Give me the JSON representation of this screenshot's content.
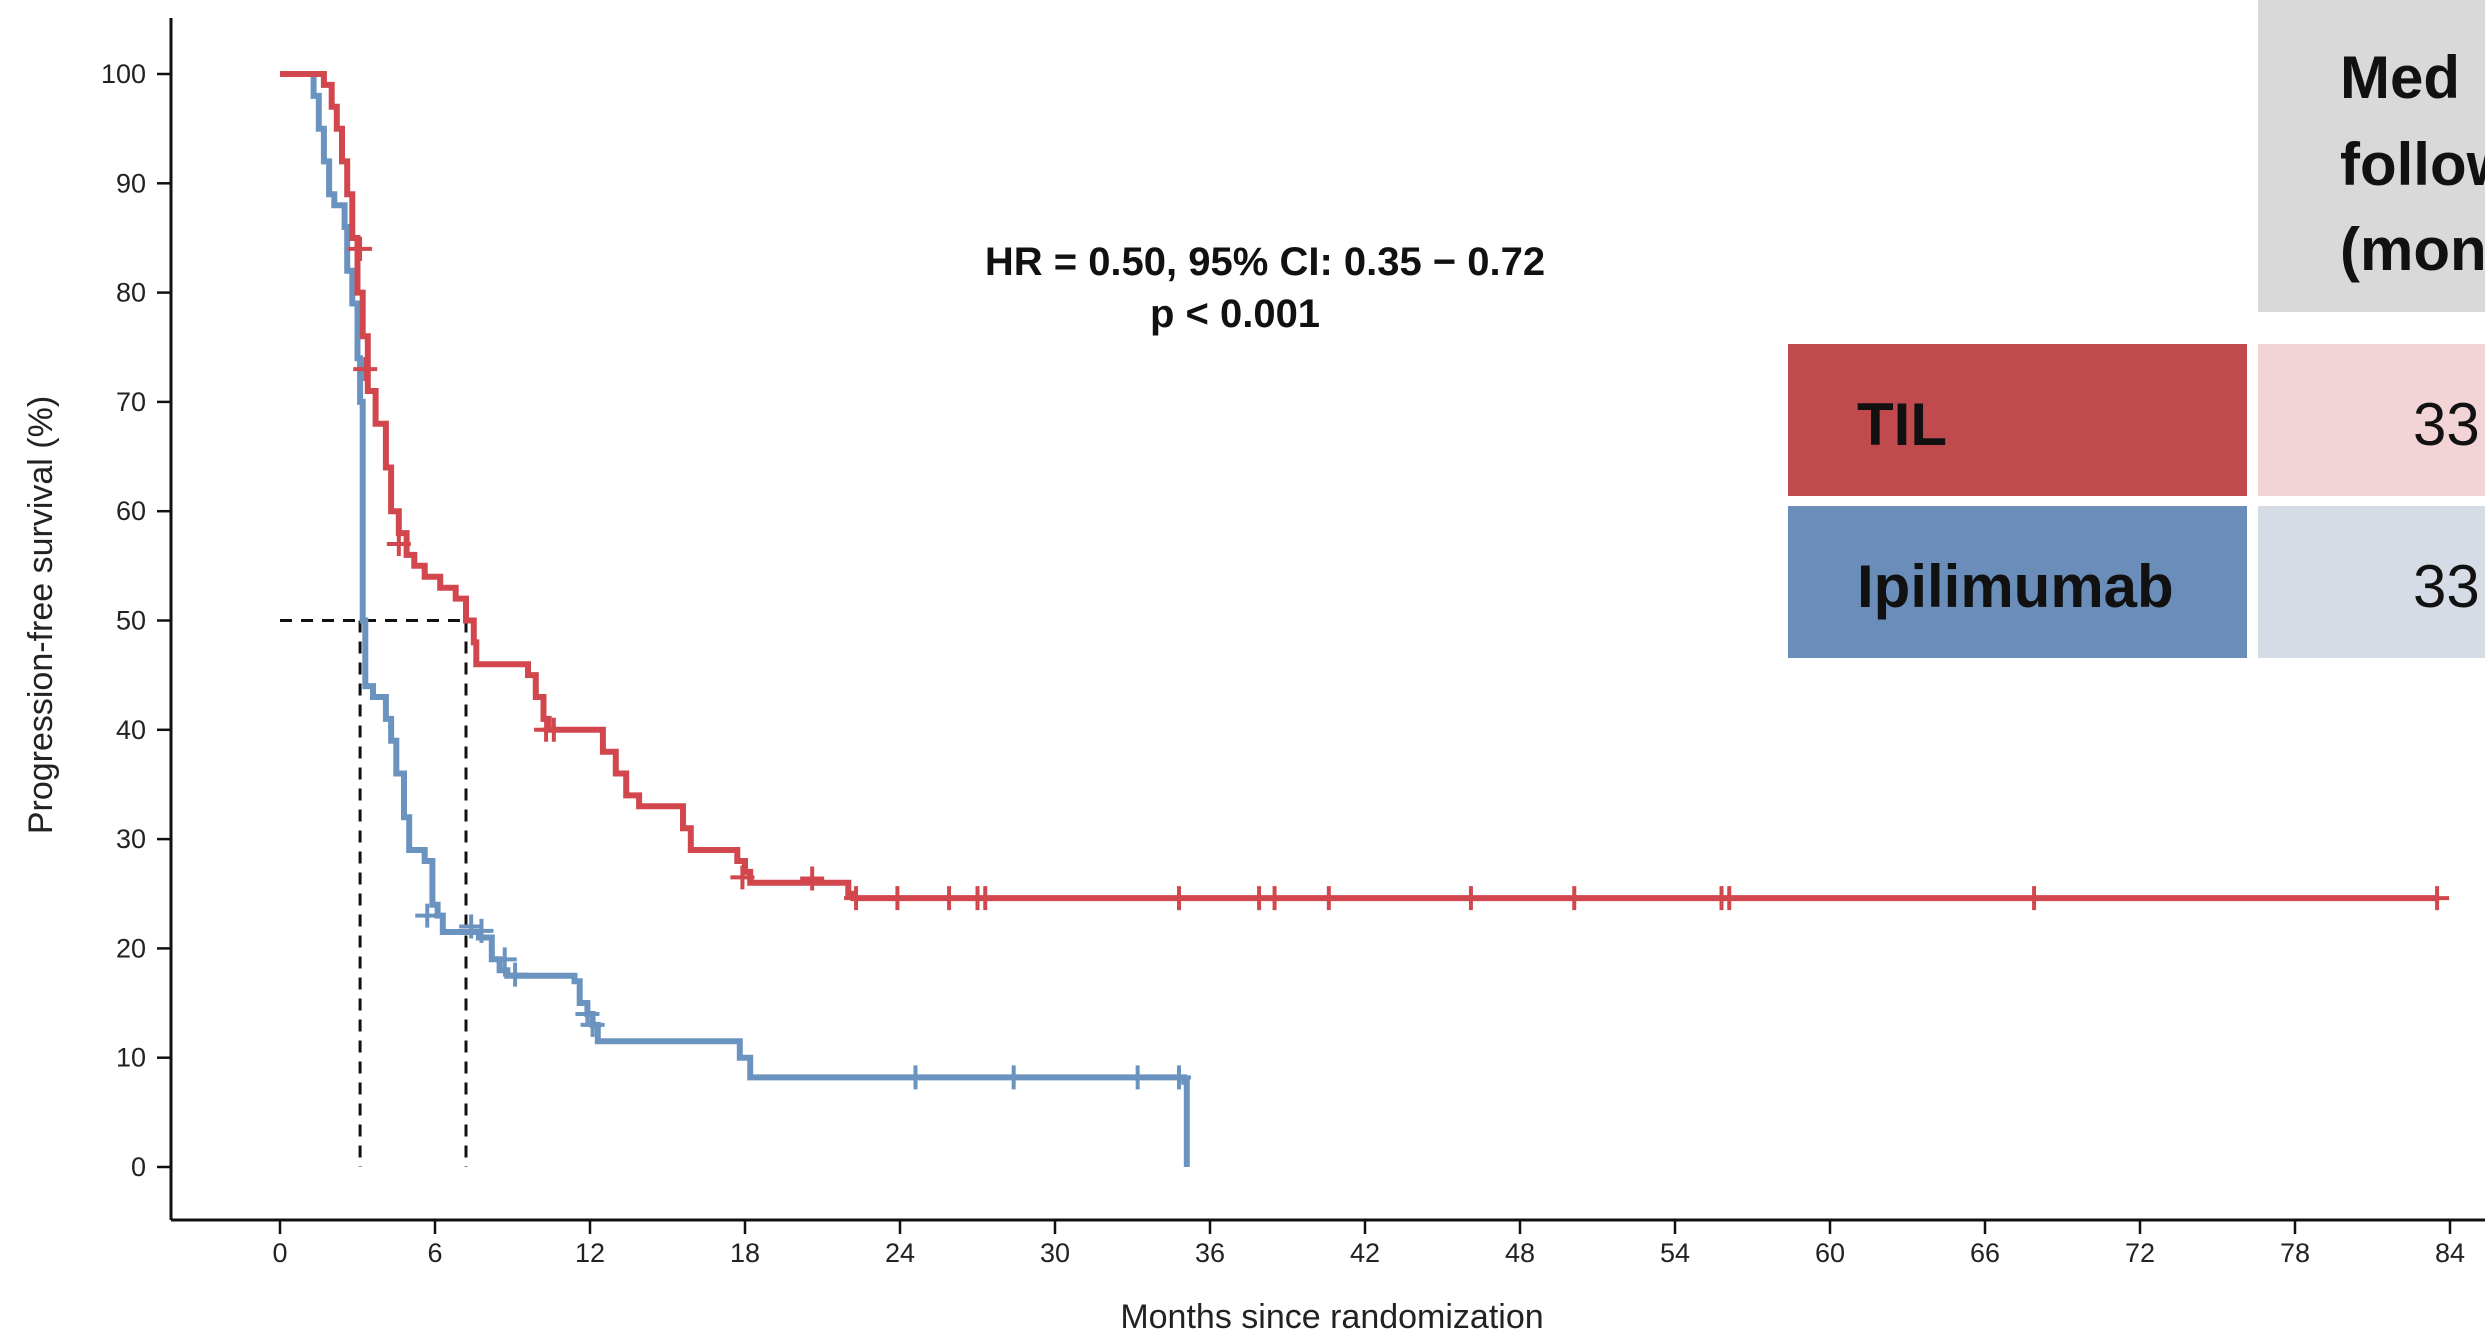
{
  "chart_data": {
    "type": "line",
    "subtype": "kaplan-meier step curve",
    "xlabel": "Months since randomization",
    "ylabel": "Progression-free survival (%)",
    "xlim": [
      0,
      84
    ],
    "ylim": [
      0,
      100
    ],
    "x_ticks": [
      0,
      6,
      12,
      18,
      24,
      30,
      36,
      42,
      48,
      54,
      60,
      66,
      72,
      78,
      84
    ],
    "y_ticks": [
      0,
      10,
      20,
      30,
      40,
      50,
      60,
      70,
      80,
      90,
      100
    ],
    "grid": false,
    "annotation": {
      "line1": "HR = 0.50, 95% CI: 0.35 − 0.72",
      "line2": "p < 0.001"
    },
    "median_reference": {
      "y": 50,
      "x_values": [
        3.1,
        7.2
      ]
    },
    "series": [
      {
        "name": "TIL",
        "color": "#d1474d",
        "steps": [
          [
            0,
            100
          ],
          [
            1.4,
            100
          ],
          [
            1.7,
            99
          ],
          [
            2.0,
            97
          ],
          [
            2.2,
            95
          ],
          [
            2.4,
            92
          ],
          [
            2.6,
            89
          ],
          [
            2.8,
            85
          ],
          [
            3.0,
            80
          ],
          [
            3.2,
            76
          ],
          [
            3.4,
            71
          ],
          [
            3.7,
            68
          ],
          [
            4.1,
            64
          ],
          [
            4.3,
            60
          ],
          [
            4.6,
            58
          ],
          [
            4.9,
            56
          ],
          [
            5.2,
            55
          ],
          [
            5.6,
            54
          ],
          [
            6.2,
            53
          ],
          [
            6.8,
            52
          ],
          [
            7.2,
            50
          ],
          [
            7.5,
            48
          ],
          [
            7.6,
            46
          ],
          [
            9.6,
            45
          ],
          [
            9.9,
            43
          ],
          [
            10.2,
            41
          ],
          [
            10.4,
            40
          ],
          [
            12.5,
            38
          ],
          [
            13.0,
            36
          ],
          [
            13.4,
            34
          ],
          [
            13.9,
            33
          ],
          [
            15.6,
            31
          ],
          [
            15.9,
            29
          ],
          [
            17.7,
            28
          ],
          [
            18.0,
            27
          ],
          [
            18.2,
            26
          ],
          [
            21.7,
            26
          ],
          [
            22.0,
            25
          ],
          [
            22.2,
            24.6
          ],
          [
            83.5,
            24.6
          ]
        ],
        "censor": [
          [
            3.1,
            84
          ],
          [
            3.3,
            73
          ],
          [
            4.6,
            57
          ],
          [
            10.3,
            40
          ],
          [
            10.6,
            40
          ],
          [
            17.9,
            26.5
          ],
          [
            20.6,
            26.4
          ],
          [
            22.3,
            24.6
          ],
          [
            23.9,
            24.6
          ],
          [
            25.9,
            24.6
          ],
          [
            27.0,
            24.6
          ],
          [
            27.3,
            24.6
          ],
          [
            34.8,
            24.6
          ],
          [
            37.9,
            24.6
          ],
          [
            38.5,
            24.6
          ],
          [
            40.6,
            24.6
          ],
          [
            46.1,
            24.6
          ],
          [
            50.1,
            24.6
          ],
          [
            55.8,
            24.6
          ],
          [
            56.1,
            24.6
          ],
          [
            67.9,
            24.6
          ],
          [
            83.5,
            24.6
          ]
        ]
      },
      {
        "name": "Ipilimumab",
        "color": "#6a93c0",
        "steps": [
          [
            0,
            100
          ],
          [
            1.1,
            100
          ],
          [
            1.3,
            98
          ],
          [
            1.5,
            95
          ],
          [
            1.7,
            92
          ],
          [
            1.9,
            89
          ],
          [
            2.1,
            88
          ],
          [
            2.5,
            86
          ],
          [
            2.6,
            82
          ],
          [
            2.8,
            79
          ],
          [
            3.0,
            74
          ],
          [
            3.1,
            70
          ],
          [
            3.2,
            50
          ],
          [
            3.3,
            44
          ],
          [
            3.6,
            43
          ],
          [
            4.1,
            41
          ],
          [
            4.3,
            39
          ],
          [
            4.5,
            36
          ],
          [
            4.8,
            32
          ],
          [
            5.0,
            29
          ],
          [
            5.6,
            28
          ],
          [
            5.9,
            24
          ],
          [
            6.1,
            23
          ],
          [
            6.3,
            21.5
          ],
          [
            7.4,
            21.5
          ],
          [
            7.7,
            21
          ],
          [
            8.2,
            19
          ],
          [
            8.5,
            18
          ],
          [
            8.8,
            17.5
          ],
          [
            11.4,
            17
          ],
          [
            11.6,
            15
          ],
          [
            11.9,
            14
          ],
          [
            12.1,
            13
          ],
          [
            12.3,
            11.5
          ],
          [
            17.5,
            11.5
          ],
          [
            17.8,
            10
          ],
          [
            18.2,
            8.2
          ],
          [
            34.7,
            8.2
          ],
          [
            35.0,
            7.8
          ],
          [
            35.1,
            0
          ]
        ],
        "censor": [
          [
            5.7,
            23
          ],
          [
            7.4,
            22
          ],
          [
            7.8,
            21.6
          ],
          [
            8.7,
            19
          ],
          [
            9.1,
            17.6
          ],
          [
            11.9,
            14
          ],
          [
            12.1,
            13
          ],
          [
            24.6,
            8.2
          ],
          [
            28.4,
            8.2
          ],
          [
            33.2,
            8.2
          ],
          [
            34.8,
            8.2
          ]
        ]
      }
    ]
  },
  "table": {
    "header": "Med\nfollow\n(mon",
    "rows": [
      {
        "name": "TIL",
        "value": "33.",
        "name_bg": "#c04a4e",
        "value_bg": "#f2d4d6"
      },
      {
        "name": "Ipilimumab",
        "value": "33.",
        "name_bg": "#6b8db9",
        "value_bg": "#d6dce5"
      }
    ],
    "header_bg": "#d9d9d9"
  }
}
